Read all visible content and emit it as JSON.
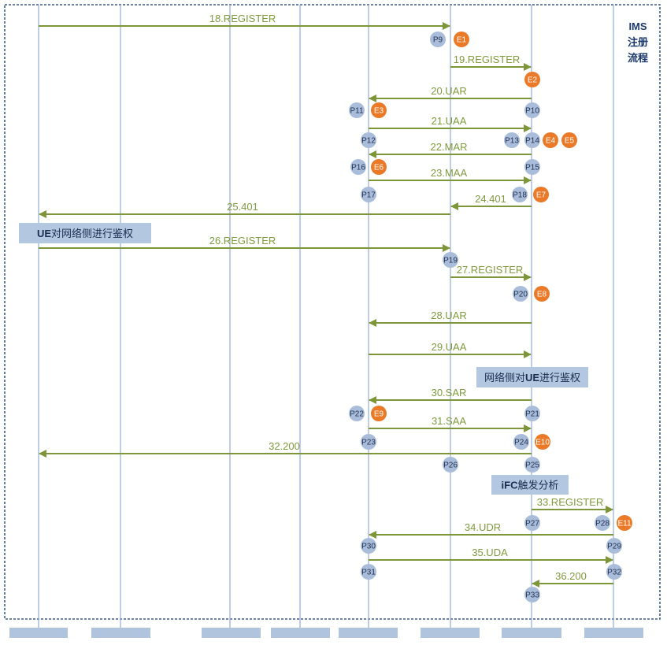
{
  "title_lines": [
    "IMS",
    "注册",
    "流程"
  ],
  "colors": {
    "lifeline": "#9ab3d6",
    "arrow": "#7d963a",
    "label": "#7f9a3f",
    "p_node": "#a9bcda",
    "e_node": "#ea7a28",
    "note_bg": "#b3c7e0",
    "frame": "#3d5a80",
    "footer_box": "#b0c4de"
  },
  "messages": [
    {
      "id": "m18",
      "label": "18.REGISTER",
      "from": 0,
      "to": 5,
      "step": 0
    },
    {
      "id": "m19",
      "label": "19.REGISTER",
      "from": 5,
      "to": 6,
      "step": 1
    },
    {
      "id": "m20",
      "label": "20.UAR",
      "from": 6,
      "to": 4,
      "step": 2
    },
    {
      "id": "m21",
      "label": "21.UAA",
      "from": 4,
      "to": 6,
      "step": 3
    },
    {
      "id": "m22",
      "label": "22.MAR",
      "from": 6,
      "to": 4,
      "step": 4
    },
    {
      "id": "m23",
      "label": "23.MAA",
      "from": 4,
      "to": 6,
      "step": 5
    },
    {
      "id": "m24",
      "label": "24.401",
      "from": 6,
      "to": 5,
      "step": 6
    },
    {
      "id": "m25",
      "label": "25.401",
      "from": 5,
      "to": 0,
      "step": 7
    },
    {
      "id": "m26",
      "label": "26.REGISTER",
      "from": 0,
      "to": 5,
      "step": 8
    },
    {
      "id": "m27",
      "label": "27.REGISTER",
      "from": 5,
      "to": 6,
      "step": 9
    },
    {
      "id": "m28",
      "label": "28.UAR",
      "from": 6,
      "to": 4,
      "step": 10
    },
    {
      "id": "m29",
      "label": "29.UAA",
      "from": 4,
      "to": 6,
      "step": 11
    },
    {
      "id": "m30",
      "label": "30.SAR",
      "from": 6,
      "to": 4,
      "step": 12
    },
    {
      "id": "m31",
      "label": "31.SAA",
      "from": 4,
      "to": 6,
      "step": 13
    },
    {
      "id": "m32",
      "label": "32.200",
      "from": 6,
      "to": 0,
      "step": 14
    },
    {
      "id": "m33",
      "label": "33.REGISTER",
      "from": 6,
      "to": 7,
      "step": 15
    },
    {
      "id": "m34",
      "label": "34.UDR",
      "from": 7,
      "to": 4,
      "step": 16
    },
    {
      "id": "m35",
      "label": "35.UDA",
      "from": 4,
      "to": 7,
      "step": 17
    },
    {
      "id": "m36",
      "label": "36.200",
      "from": 7,
      "to": 6,
      "step": 18
    }
  ],
  "nodes": [
    {
      "label": "P9",
      "kind": "P"
    },
    {
      "label": "E1",
      "kind": "E"
    },
    {
      "label": "E2",
      "kind": "E"
    },
    {
      "label": "P10",
      "kind": "P"
    },
    {
      "label": "P11",
      "kind": "P"
    },
    {
      "label": "E3",
      "kind": "E"
    },
    {
      "label": "P12",
      "kind": "P"
    },
    {
      "label": "P13",
      "kind": "P"
    },
    {
      "label": "P14",
      "kind": "P"
    },
    {
      "label": "E4",
      "kind": "E"
    },
    {
      "label": "E5",
      "kind": "E"
    },
    {
      "label": "P15",
      "kind": "P"
    },
    {
      "label": "P16",
      "kind": "P"
    },
    {
      "label": "E6",
      "kind": "E"
    },
    {
      "label": "P17",
      "kind": "P"
    },
    {
      "label": "P18",
      "kind": "P"
    },
    {
      "label": "E7",
      "kind": "E"
    },
    {
      "label": "P19",
      "kind": "P"
    },
    {
      "label": "P20",
      "kind": "P"
    },
    {
      "label": "E8",
      "kind": "E"
    },
    {
      "label": "P21",
      "kind": "P"
    },
    {
      "label": "P22",
      "kind": "P"
    },
    {
      "label": "E9",
      "kind": "E"
    },
    {
      "label": "P23",
      "kind": "P"
    },
    {
      "label": "P24",
      "kind": "P"
    },
    {
      "label": "E10",
      "kind": "E"
    },
    {
      "label": "P25",
      "kind": "P"
    },
    {
      "label": "P26",
      "kind": "P"
    },
    {
      "label": "P27",
      "kind": "P"
    },
    {
      "label": "P28",
      "kind": "P"
    },
    {
      "label": "E11",
      "kind": "E"
    },
    {
      "label": "P29",
      "kind": "P"
    },
    {
      "label": "P30",
      "kind": "P"
    },
    {
      "label": "P31",
      "kind": "P"
    },
    {
      "label": "P32",
      "kind": "P"
    },
    {
      "label": "P33",
      "kind": "P"
    }
  ],
  "notes": [
    {
      "id": "note-ue-auth",
      "parts": [
        {
          "t": "UE",
          "b": true
        },
        {
          "t": "对网络侧进行鉴权",
          "b": false
        }
      ]
    },
    {
      "id": "note-net-auth",
      "parts": [
        {
          "t": "网络侧对",
          "b": false
        },
        {
          "t": "UE",
          "b": true
        },
        {
          "t": "进行鉴权",
          "b": false
        }
      ]
    },
    {
      "id": "note-ifc",
      "parts": [
        {
          "t": "iFC",
          "b": true
        },
        {
          "t": "触发分析",
          "b": false
        }
      ]
    }
  ]
}
